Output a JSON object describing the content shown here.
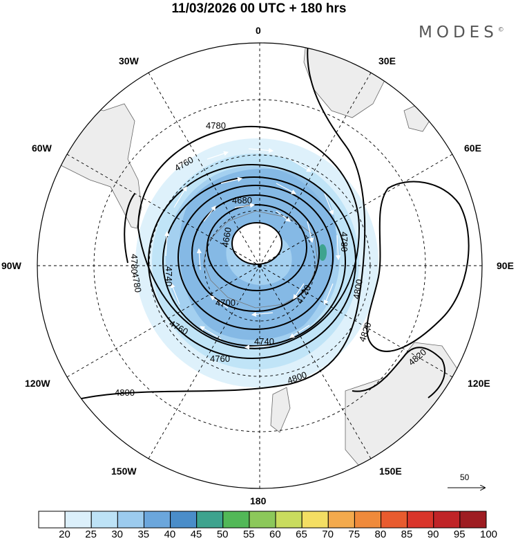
{
  "title": "11/03/2026  00 UTC  + 180 hrs",
  "brand": "MODES",
  "brand_mark": "©",
  "longitude_labels": {
    "north": "0",
    "ne": "30E",
    "nw": "30W",
    "e60": "60E",
    "w60": "60W",
    "east": "90E",
    "west": "90W",
    "e120": "120E",
    "w120": "120W",
    "e150": "150E",
    "w150": "150W",
    "south": "180"
  },
  "contours": {
    "c4660": "4660",
    "c4680": "4680",
    "c4700": "4700",
    "c4720": "4720",
    "c4740a": "4740",
    "c4740b": "4740",
    "c4760a": "4760",
    "c4760b": "4760",
    "c4760c": "4760",
    "c4780a": "4780",
    "c4780b": "4780",
    "c4780c": "4780",
    "c4780d": "4780",
    "c4800a": "4800",
    "c4800b": "4800",
    "c4800c": "4800",
    "c4820a": "4820",
    "c4820b": "4820"
  },
  "reference_vector": "50",
  "colorbar": {
    "labels": [
      "20",
      "25",
      "30",
      "35",
      "40",
      "45",
      "50",
      "55",
      "60",
      "65",
      "70",
      "75",
      "80",
      "85",
      "90",
      "95",
      "100"
    ],
    "colors": [
      "#ffffff",
      "#dcf0fb",
      "#bde2f6",
      "#9ccbee",
      "#6ba6dc",
      "#4a8dc9",
      "#3ea38e",
      "#52b857",
      "#8cc85a",
      "#c9dc5e",
      "#f4de63",
      "#f3aa4d",
      "#ef8a3b",
      "#e85b2e",
      "#d9352a",
      "#c02427",
      "#9e1d22"
    ]
  }
}
